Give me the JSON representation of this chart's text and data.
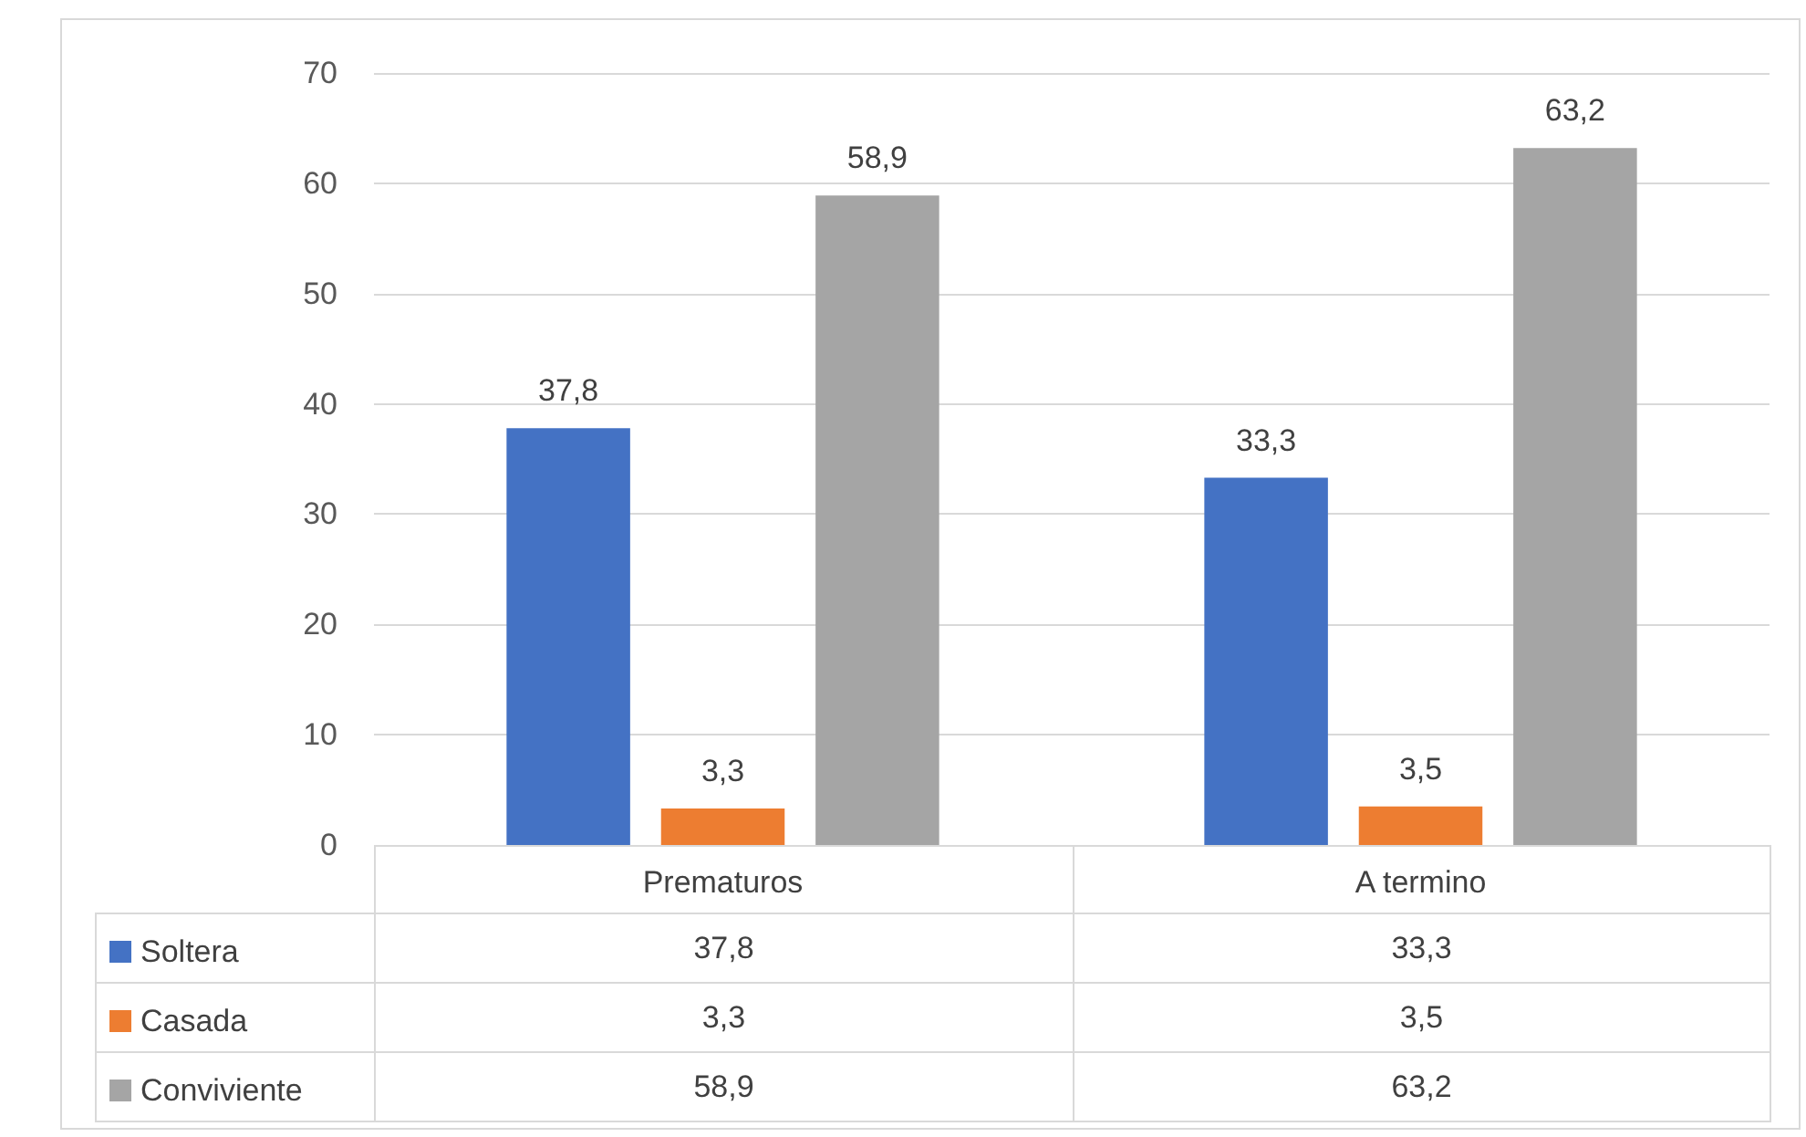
{
  "chart_data": {
    "type": "bar",
    "categories": [
      "Prematuros",
      "A termino"
    ],
    "series": [
      {
        "name": "Soltera",
        "color": "#4472c4",
        "values": [
          37.8,
          33.3
        ],
        "value_labels": [
          "37,8",
          "33,3"
        ]
      },
      {
        "name": "Casada",
        "color": "#ed7d31",
        "values": [
          3.3,
          3.5
        ],
        "value_labels": [
          "3,3",
          "3,5"
        ]
      },
      {
        "name": "Conviviente",
        "color": "#a5a5a5",
        "values": [
          58.9,
          63.2
        ],
        "value_labels": [
          "58,9",
          "63,2"
        ]
      }
    ],
    "ylim": [
      0,
      70
    ],
    "yticks": [
      0,
      10,
      20,
      30,
      40,
      50,
      60,
      70
    ],
    "grid": "y",
    "legend": "bottom left"
  }
}
